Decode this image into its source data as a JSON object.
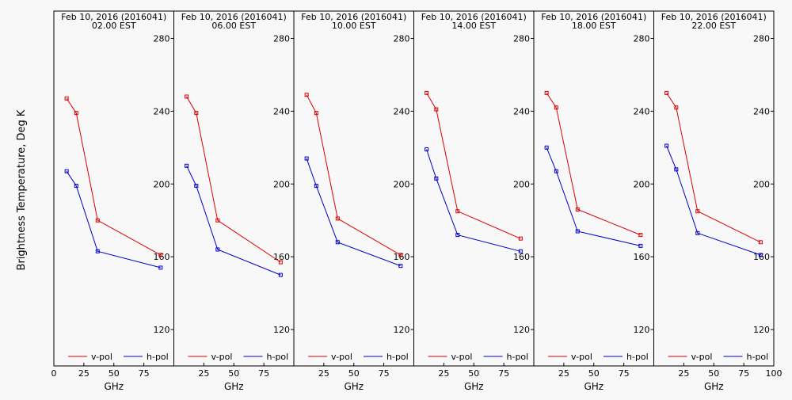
{
  "figure": {
    "ylabel": "Brightness Temperature, Deg K"
  },
  "chart_data": [
    {
      "type": "line",
      "title": "Feb 10, 2016 (2016041)",
      "subtitle": "02.00 EST",
      "xlabel": "GHz",
      "xlim": [
        0,
        100
      ],
      "ylim": [
        100,
        295
      ],
      "x_ticks": [
        0,
        25,
        50,
        75,
        100
      ],
      "y_ticks": [
        120,
        160,
        200,
        240,
        280
      ],
      "legend_position": "bottom",
      "series": [
        {
          "name": "v-pol",
          "color": "#dd0000",
          "x": [
            10.65,
            18.7,
            36.5,
            89.0
          ],
          "y": [
            247,
            239,
            180,
            161
          ]
        },
        {
          "name": "h-pol",
          "color": "#0000cc",
          "x": [
            10.65,
            18.7,
            36.5,
            89.0
          ],
          "y": [
            207,
            199,
            163,
            154
          ]
        }
      ]
    },
    {
      "type": "line",
      "title": "Feb 10, 2016 (2016041)",
      "subtitle": "06.00 EST",
      "xlabel": "GHz",
      "xlim": [
        0,
        100
      ],
      "ylim": [
        100,
        295
      ],
      "x_ticks": [
        0,
        25,
        50,
        75,
        100
      ],
      "y_ticks": [
        120,
        160,
        200,
        240,
        280
      ],
      "legend_position": "bottom",
      "series": [
        {
          "name": "v-pol",
          "color": "#dd0000",
          "x": [
            10.65,
            18.7,
            36.5,
            89.0
          ],
          "y": [
            248,
            239,
            180,
            157
          ]
        },
        {
          "name": "h-pol",
          "color": "#0000cc",
          "x": [
            10.65,
            18.7,
            36.5,
            89.0
          ],
          "y": [
            210,
            199,
            164,
            150
          ]
        }
      ]
    },
    {
      "type": "line",
      "title": "Feb 10, 2016 (2016041)",
      "subtitle": "10.00 EST",
      "xlabel": "GHz",
      "xlim": [
        0,
        100
      ],
      "ylim": [
        100,
        295
      ],
      "x_ticks": [
        0,
        25,
        50,
        75,
        100
      ],
      "y_ticks": [
        120,
        160,
        200,
        240,
        280
      ],
      "legend_position": "bottom",
      "series": [
        {
          "name": "v-pol",
          "color": "#dd0000",
          "x": [
            10.65,
            18.7,
            36.5,
            89.0
          ],
          "y": [
            249,
            239,
            181,
            161
          ]
        },
        {
          "name": "h-pol",
          "color": "#0000cc",
          "x": [
            10.65,
            18.7,
            36.5,
            89.0
          ],
          "y": [
            214,
            199,
            168,
            155
          ]
        }
      ]
    },
    {
      "type": "line",
      "title": "Feb 10, 2016 (2016041)",
      "subtitle": "14.00 EST",
      "xlabel": "GHz",
      "xlim": [
        0,
        100
      ],
      "ylim": [
        100,
        295
      ],
      "x_ticks": [
        0,
        25,
        50,
        75,
        100
      ],
      "y_ticks": [
        120,
        160,
        200,
        240,
        280
      ],
      "legend_position": "bottom",
      "series": [
        {
          "name": "v-pol",
          "color": "#dd0000",
          "x": [
            10.65,
            18.7,
            36.5,
            89.0
          ],
          "y": [
            250,
            241,
            185,
            170
          ]
        },
        {
          "name": "h-pol",
          "color": "#0000cc",
          "x": [
            10.65,
            18.7,
            36.5,
            89.0
          ],
          "y": [
            219,
            203,
            172,
            163
          ]
        }
      ]
    },
    {
      "type": "line",
      "title": "Feb 10, 2016 (2016041)",
      "subtitle": "18.00 EST",
      "xlabel": "GHz",
      "xlim": [
        0,
        100
      ],
      "ylim": [
        100,
        295
      ],
      "x_ticks": [
        0,
        25,
        50,
        75,
        100
      ],
      "y_ticks": [
        120,
        160,
        200,
        240,
        280
      ],
      "legend_position": "bottom",
      "series": [
        {
          "name": "v-pol",
          "color": "#dd0000",
          "x": [
            10.65,
            18.7,
            36.5,
            89.0
          ],
          "y": [
            250,
            242,
            186,
            172
          ]
        },
        {
          "name": "h-pol",
          "color": "#0000cc",
          "x": [
            10.65,
            18.7,
            36.5,
            89.0
          ],
          "y": [
            220,
            207,
            174,
            166
          ]
        }
      ]
    },
    {
      "type": "line",
      "title": "Feb 10, 2016 (2016041)",
      "subtitle": "22.00 EST",
      "xlabel": "GHz",
      "xlim": [
        0,
        100
      ],
      "ylim": [
        100,
        295
      ],
      "x_ticks": [
        0,
        25,
        50,
        75,
        100
      ],
      "y_ticks": [
        120,
        160,
        200,
        240,
        280
      ],
      "legend_position": "bottom",
      "series": [
        {
          "name": "v-pol",
          "color": "#dd0000",
          "x": [
            10.65,
            18.7,
            36.5,
            89.0
          ],
          "y": [
            250,
            242,
            185,
            168
          ]
        },
        {
          "name": "h-pol",
          "color": "#0000cc",
          "x": [
            10.65,
            18.7,
            36.5,
            89.0
          ],
          "y": [
            221,
            208,
            173,
            161
          ]
        }
      ]
    }
  ]
}
